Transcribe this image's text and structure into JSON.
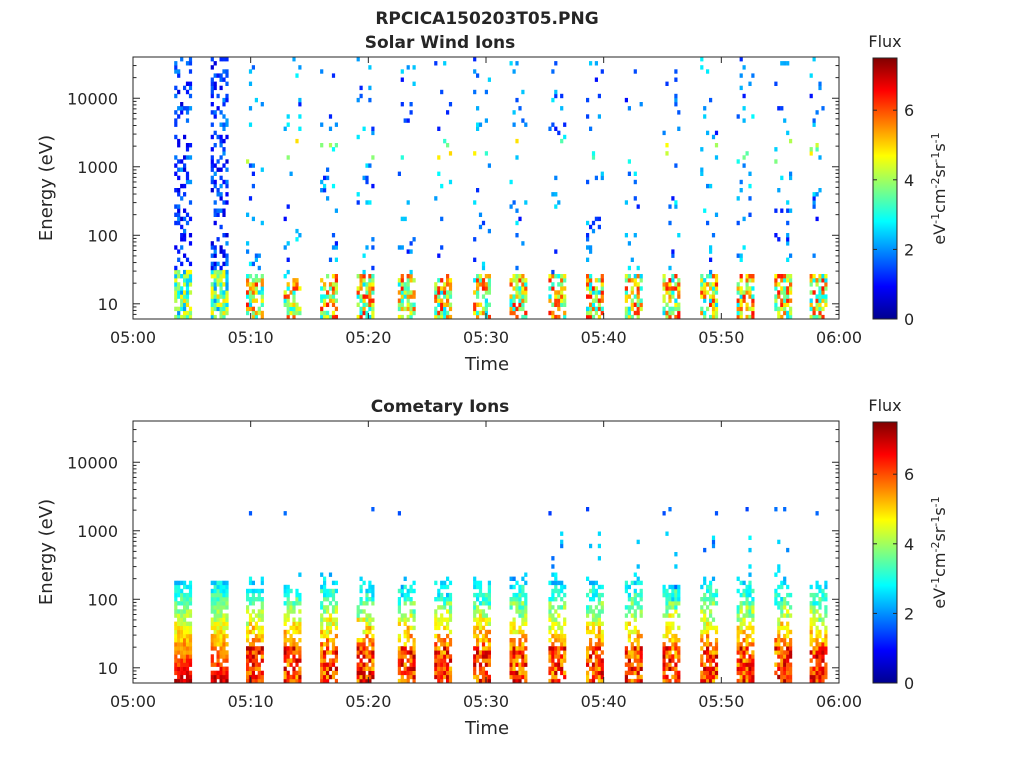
{
  "figure": {
    "title": "RPCICA150203T05.PNG"
  },
  "chart_data": [
    {
      "type": "heatmap",
      "title": "Solar Wind Ions",
      "xlabel": "Time",
      "ylabel": "Energy (eV)",
      "x_ticks": [
        "05:00",
        "05:10",
        "05:20",
        "05:30",
        "05:40",
        "05:50",
        "06:00"
      ],
      "x_range_minutes": [
        0,
        60
      ],
      "y_ticks": [
        "10",
        "100",
        "1000",
        "10000"
      ],
      "y_scale": "log",
      "y_range_eV": [
        6,
        40000
      ],
      "colorbar": {
        "label": "Flux",
        "units": "eV-1cm-2sr-1s-1",
        "ticks": [
          "0",
          "2",
          "4",
          "6"
        ],
        "range": [
          0,
          7.5
        ],
        "colormap": "jet"
      },
      "sweep_start_minutes": [
        3.5,
        6.6,
        9.6,
        12.8,
        15.9,
        19.0,
        22.5,
        25.6,
        28.9,
        32.0,
        35.3,
        38.5,
        41.8,
        45.0,
        48.2,
        51.3,
        54.5,
        57.5
      ],
      "sweep_duration_minutes": 1.6
    },
    {
      "type": "heatmap",
      "title": "Cometary Ions",
      "xlabel": "Time",
      "ylabel": "Energy (eV)",
      "x_ticks": [
        "05:00",
        "05:10",
        "05:20",
        "05:30",
        "05:40",
        "05:50",
        "06:00"
      ],
      "x_range_minutes": [
        0,
        60
      ],
      "y_ticks": [
        "10",
        "100",
        "1000",
        "10000"
      ],
      "y_scale": "log",
      "y_range_eV": [
        6,
        40000
      ],
      "colorbar": {
        "label": "Flux",
        "units": "eV-1cm-2sr-1s-1",
        "ticks": [
          "0",
          "2",
          "4",
          "6"
        ],
        "range": [
          0,
          7.5
        ],
        "colormap": "jet"
      },
      "sweep_start_minutes": [
        3.5,
        6.6,
        9.6,
        12.8,
        15.9,
        19.0,
        22.5,
        25.6,
        28.9,
        32.0,
        35.3,
        38.5,
        41.8,
        45.0,
        48.2,
        51.3,
        54.5,
        57.5
      ],
      "sweep_duration_minutes": 1.6
    }
  ]
}
